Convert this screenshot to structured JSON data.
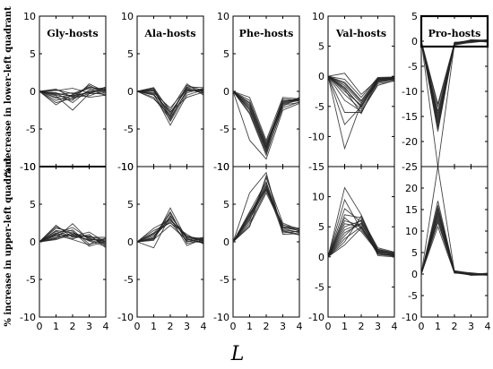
{
  "chart_data": {
    "type": "line",
    "xlabel": "L",
    "x": [
      0,
      1,
      2,
      3,
      4
    ],
    "x_ticks": [
      "0",
      "1",
      "2",
      "3",
      "4"
    ],
    "row_labels": [
      "% decrease in lower-left quadrant",
      "% increase in upper-left quadrant"
    ],
    "panels": [
      {
        "title": "Gly-hosts",
        "title_bold_box": false,
        "top": {
          "ylim": [
            -10,
            10
          ],
          "yticks": [
            "10",
            "5",
            "0",
            "-5",
            "-10"
          ],
          "series": [
            [
              0,
              -0.3,
              -0.6,
              -0.2,
              -0.4
            ],
            [
              0,
              -0.5,
              -1.0,
              -0.3,
              -0.2
            ],
            [
              0,
              0.2,
              -0.3,
              0.5,
              0.3
            ],
            [
              0,
              -0.8,
              -0.5,
              0.4,
              -0.6
            ],
            [
              0,
              -0.2,
              -1.5,
              0.2,
              0.5
            ],
            [
              0,
              -1.2,
              -0.6,
              -0.1,
              0.1
            ],
            [
              0,
              0.3,
              -0.8,
              0.8,
              -0.3
            ],
            [
              0,
              -0.6,
              -2.5,
              -0.3,
              0.4
            ],
            [
              0,
              -1.8,
              -0.4,
              0.6,
              0.2
            ],
            [
              0,
              -0.4,
              -0.2,
              -0.8,
              -0.5
            ],
            [
              0,
              0.1,
              0.4,
              -0.2,
              0.6
            ],
            [
              0,
              -0.9,
              -1.2,
              1.0,
              -0.1
            ],
            [
              0,
              -1.5,
              -0.9,
              0.0,
              0.3
            ],
            [
              0,
              -0.2,
              -0.7,
              -0.6,
              0.2
            ]
          ]
        },
        "bottom": {
          "ylim": [
            -10,
            10
          ],
          "yticks": [
            "10",
            "5",
            "0",
            "-5",
            "-10"
          ],
          "series": [
            [
              0,
              1.0,
              0.8,
              0.3,
              0.2
            ],
            [
              0,
              1.5,
              1.2,
              0.5,
              -0.2
            ],
            [
              0,
              0.5,
              2.4,
              0.2,
              0.4
            ],
            [
              0,
              2.2,
              0.6,
              0.8,
              -0.5
            ],
            [
              0,
              0.8,
              1.6,
              -0.3,
              0.3
            ],
            [
              0,
              1.2,
              0.4,
              1.0,
              -0.8
            ],
            [
              0,
              0.3,
              1.0,
              0.6,
              0.6
            ],
            [
              0,
              1.8,
              1.4,
              -0.6,
              0.1
            ],
            [
              0,
              0.6,
              0.9,
              0.2,
              -0.3
            ],
            [
              0,
              1.1,
              1.9,
              0.4,
              0.0
            ],
            [
              0,
              0.9,
              0.3,
              -0.4,
              0.5
            ],
            [
              0,
              1.4,
              0.7,
              1.3,
              -0.1
            ],
            [
              0,
              0.4,
              1.2,
              0.1,
              -0.6
            ],
            [
              0,
              2.0,
              1.0,
              0.7,
              0.2
            ]
          ]
        }
      },
      {
        "title": "Ala-hosts",
        "title_bold_box": false,
        "top": {
          "ylim": [
            -10,
            10
          ],
          "yticks": [
            "10",
            "5",
            "0",
            "-5",
            "-10"
          ],
          "series": [
            [
              0,
              0.0,
              -3.0,
              0.5,
              0.0
            ],
            [
              0,
              -0.5,
              -3.5,
              0.0,
              0.3
            ],
            [
              0,
              0.2,
              -2.5,
              1.0,
              -0.5
            ],
            [
              0,
              -0.3,
              -4.5,
              -0.5,
              0.2
            ],
            [
              0,
              0.5,
              -2.8,
              0.3,
              -0.2
            ],
            [
              0,
              -1.0,
              -3.2,
              0.8,
              0.1
            ],
            [
              0,
              0.3,
              -4.0,
              -0.2,
              0.4
            ],
            [
              0,
              -0.2,
              -2.2,
              0.4,
              -0.3
            ],
            [
              0,
              -0.8,
              -3.8,
              0.2,
              0.0
            ],
            [
              0,
              0.1,
              -3.3,
              0.6,
              0.5
            ],
            [
              0,
              -0.4,
              -2.7,
              -0.8,
              -0.1
            ],
            [
              0,
              0.4,
              -3.6,
              0.1,
              0.2
            ]
          ]
        },
        "bottom": {
          "ylim": [
            -10,
            10
          ],
          "yticks": [
            "10",
            "5",
            "0",
            "-5",
            "-10"
          ],
          "series": [
            [
              0,
              1.0,
              3.0,
              0.5,
              0.2
            ],
            [
              0,
              0.5,
              3.8,
              0.0,
              0.5
            ],
            [
              0,
              1.5,
              2.5,
              1.0,
              -0.3
            ],
            [
              0,
              0.2,
              4.5,
              0.3,
              0.0
            ],
            [
              0,
              1.2,
              3.2,
              -0.5,
              0.4
            ],
            [
              0,
              0.8,
              2.8,
              0.8,
              0.1
            ],
            [
              0,
              -0.8,
              3.5,
              0.4,
              -0.2
            ],
            [
              0,
              0.3,
              2.2,
              0.2,
              0.6
            ],
            [
              0,
              1.8,
              3.0,
              0.6,
              0.3
            ],
            [
              0,
              0.6,
              4.0,
              -0.2,
              0.2
            ],
            [
              0,
              1.1,
              2.6,
              0.1,
              -0.1
            ],
            [
              0,
              0.4,
              3.4,
              0.7,
              0.4
            ]
          ]
        }
      },
      {
        "title": "Phe-hosts",
        "title_bold_box": false,
        "top": {
          "ylim": [
            -10,
            10
          ],
          "yticks": [
            "10",
            "5",
            "0",
            "-5",
            "-10"
          ],
          "series": [
            [
              0,
              -2.0,
              -7.5,
              -1.5,
              -1.0
            ],
            [
              0,
              -2.5,
              -8.0,
              -1.2,
              -1.3
            ],
            [
              0,
              -1.5,
              -7.0,
              -2.0,
              -0.8
            ],
            [
              0,
              -3.0,
              -8.5,
              -1.8,
              -1.5
            ],
            [
              0,
              -1.8,
              -7.2,
              -1.0,
              -1.2
            ],
            [
              0,
              -2.2,
              -7.8,
              -1.6,
              -1.1
            ],
            [
              0,
              -1.2,
              -6.8,
              -1.4,
              -0.9
            ],
            [
              0,
              -2.8,
              -8.2,
              -2.2,
              -1.4
            ],
            [
              0,
              -1.6,
              -7.4,
              -1.3,
              -1.0
            ],
            [
              0,
              -2.4,
              -7.6,
              -1.7,
              -1.2
            ],
            [
              0,
              -6.5,
              -9.0,
              -2.5,
              -1.6
            ],
            [
              0,
              -0.8,
              -6.5,
              -0.8,
              -1.0
            ]
          ]
        },
        "bottom": {
          "ylim": [
            -10,
            10
          ],
          "yticks": [
            "10",
            "5",
            "0",
            "-5",
            "-10"
          ],
          "series": [
            [
              0,
              3.0,
              7.0,
              2.0,
              1.5
            ],
            [
              0,
              3.5,
              7.5,
              1.8,
              1.2
            ],
            [
              0,
              2.5,
              6.8,
              2.2,
              1.8
            ],
            [
              0,
              4.0,
              8.0,
              1.5,
              1.0
            ],
            [
              0,
              3.2,
              7.2,
              1.2,
              1.4
            ],
            [
              0,
              2.8,
              8.5,
              2.5,
              1.6
            ],
            [
              0,
              3.6,
              7.8,
              1.6,
              1.3
            ],
            [
              0,
              2.2,
              6.5,
              2.0,
              1.7
            ],
            [
              0,
              6.5,
              9.2,
              1.0,
              1.1
            ],
            [
              0,
              3.4,
              7.4,
              1.9,
              1.5
            ],
            [
              0,
              2.0,
              8.8,
              1.4,
              0.9
            ],
            [
              0,
              3.8,
              7.0,
              2.3,
              1.4
            ]
          ]
        }
      },
      {
        "title": "Val-hosts",
        "title_bold_box": false,
        "top": {
          "ylim": [
            -15,
            10
          ],
          "yticks": [
            "10",
            "5",
            "0",
            "-5",
            "-10",
            "-15"
          ],
          "series": [
            [
              0,
              -1.5,
              -4.5,
              -0.5,
              -0.3
            ],
            [
              0,
              -2.0,
              -5.0,
              -0.8,
              -0.5
            ],
            [
              0,
              -1.0,
              -4.0,
              -0.3,
              -0.2
            ],
            [
              0,
              -3.0,
              -5.5,
              -1.0,
              -0.6
            ],
            [
              0,
              -2.5,
              -4.8,
              -0.6,
              -0.4
            ],
            [
              0,
              -1.8,
              -5.2,
              -0.4,
              -0.3
            ],
            [
              0,
              -6.0,
              -6.0,
              -1.2,
              -0.8
            ],
            [
              0,
              -8.0,
              -5.0,
              -0.9,
              -0.5
            ],
            [
              0,
              -12.0,
              -4.5,
              -0.7,
              -0.4
            ],
            [
              0,
              -0.5,
              -3.5,
              -0.2,
              -0.1
            ],
            [
              0,
              0.5,
              -3.0,
              -0.5,
              -0.2
            ],
            [
              0,
              -4.0,
              -5.8,
              -1.5,
              -0.7
            ],
            [
              0,
              -2.2,
              -6.2,
              -0.6,
              -0.3
            ],
            [
              0,
              -1.2,
              -4.2,
              -0.4,
              -0.2
            ]
          ]
        },
        "bottom": {
          "ylim": [
            -10,
            15
          ],
          "yticks": [
            "10",
            "5",
            "0",
            "-5",
            "-10"
          ],
          "series": [
            [
              0,
              3.0,
              5.0,
              1.0,
              0.5
            ],
            [
              0,
              4.0,
              5.5,
              0.8,
              0.3
            ],
            [
              0,
              5.0,
              6.0,
              1.2,
              0.6
            ],
            [
              0,
              6.0,
              5.2,
              0.5,
              0.2
            ],
            [
              0,
              7.0,
              6.5,
              1.5,
              0.8
            ],
            [
              0,
              8.0,
              5.8,
              0.7,
              0.4
            ],
            [
              0,
              9.5,
              4.5,
              1.0,
              0.5
            ],
            [
              0,
              11.5,
              7.0,
              0.9,
              0.3
            ],
            [
              0,
              2.0,
              4.8,
              0.6,
              0.2
            ],
            [
              0,
              3.5,
              6.2,
              1.3,
              0.7
            ],
            [
              0,
              5.5,
              5.0,
              0.4,
              0.1
            ],
            [
              0,
              4.5,
              5.6,
              1.1,
              0.6
            ],
            [
              0,
              6.5,
              4.2,
              0.8,
              0.3
            ],
            [
              0,
              2.5,
              6.8,
              0.2,
              0.0
            ]
          ]
        }
      },
      {
        "title": "Pro-hosts",
        "title_bold_box": true,
        "top": {
          "ylim": [
            -25,
            5
          ],
          "yticks": [
            "5",
            "0",
            "-5",
            "-10",
            "-15",
            "-20",
            "-25"
          ],
          "series": [
            [
              0,
              -14.0,
              -0.5,
              0.0,
              0.2
            ],
            [
              0,
              -15.0,
              -0.3,
              0.2,
              0.0
            ],
            [
              0,
              -16.0,
              -0.8,
              -0.2,
              0.1
            ],
            [
              0,
              -17.0,
              -0.4,
              0.1,
              -0.2
            ],
            [
              0,
              -13.0,
              -0.6,
              0.3,
              0.2
            ],
            [
              0,
              -18.0,
              -0.2,
              -0.1,
              0.0
            ],
            [
              0,
              -15.5,
              -0.7,
              0.0,
              0.3
            ],
            [
              0,
              -14.5,
              -0.4,
              0.2,
              -0.1
            ],
            [
              0,
              -16.5,
              -0.5,
              -0.3,
              0.1
            ],
            [
              0,
              -12.5,
              -0.3,
              0.1,
              0.2
            ],
            [
              0,
              -25.0,
              -0.6,
              0.0,
              0.0
            ],
            [
              0,
              -17.5,
              -0.5,
              0.2,
              0.1
            ]
          ]
        },
        "bottom": {
          "ylim": [
            -10,
            25
          ],
          "yticks": [
            "20",
            "15",
            "10",
            "5",
            "0",
            "-5",
            "-10"
          ],
          "series": [
            [
              0,
              12.0,
              0.5,
              0.0,
              -0.2
            ],
            [
              0,
              13.0,
              0.3,
              -0.2,
              0.0
            ],
            [
              0,
              14.0,
              0.8,
              0.2,
              -0.1
            ],
            [
              0,
              15.0,
              0.4,
              -0.1,
              0.2
            ],
            [
              0,
              16.0,
              0.6,
              -0.3,
              -0.2
            ],
            [
              0,
              11.0,
              0.2,
              0.1,
              0.0
            ],
            [
              0,
              13.5,
              0.7,
              0.0,
              -0.3
            ],
            [
              0,
              14.5,
              0.4,
              -0.2,
              0.1
            ],
            [
              0,
              17.0,
              0.5,
              0.3,
              -0.1
            ],
            [
              0,
              12.5,
              0.3,
              -0.1,
              -0.2
            ],
            [
              0,
              25.0,
              0.6,
              0.0,
              0.0
            ],
            [
              0,
              15.5,
              0.5,
              -0.2,
              0.1
            ]
          ]
        }
      }
    ]
  }
}
